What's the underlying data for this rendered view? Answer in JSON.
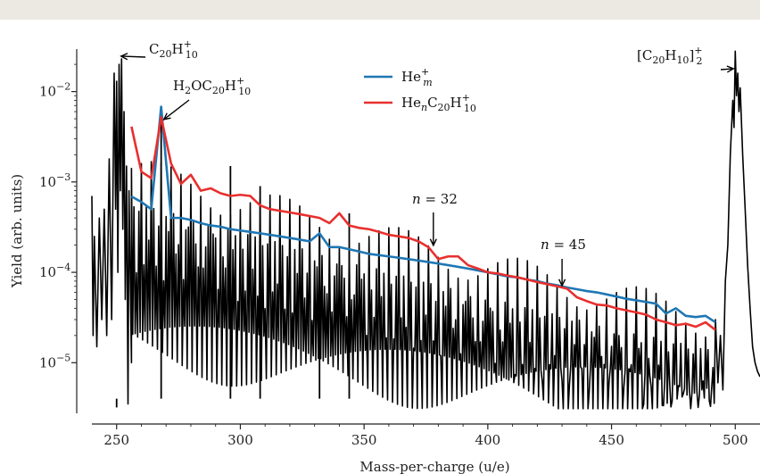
{
  "chart_data": {
    "type": "line",
    "xlabel": "Mass-per-charge (u/e)",
    "ylabel": "Yield (arb. units)",
    "xlim": [
      240,
      510
    ],
    "ylim_log10": [
      -5.55,
      -1.53
    ],
    "yscale": "log",
    "x_ticks": [
      250,
      300,
      350,
      400,
      450,
      500
    ],
    "x_tick_labels": [
      "250",
      "300",
      "350",
      "400",
      "450",
      "500"
    ],
    "y_ticks": [
      1e-05,
      0.0001,
      0.001,
      0.01
    ],
    "y_tick_labels": [
      "10",
      "10",
      "10",
      "10"
    ],
    "y_tick_exponents": [
      "−5",
      "−4",
      "−3",
      "−2"
    ],
    "colors": {
      "spectrum": "#000000",
      "He_m": "#1f77b4",
      "He_n_C20H10": "#e8302e"
    },
    "legend": {
      "placement": "top-center",
      "entries": [
        {
          "key": "He_m",
          "base": "He",
          "sup": "+",
          "sub": "m"
        },
        {
          "key": "He_n_C20H10",
          "base": "He",
          "sub": "n",
          "base2": "C",
          "sub2": "20",
          "base3": "H",
          "sup3": "+",
          "sub3": "10"
        }
      ]
    },
    "series": [
      {
        "key": "He_m",
        "x": [
          256,
          260,
          264,
          268,
          272,
          276,
          280,
          284,
          288,
          292,
          296,
          300,
          304,
          308,
          312,
          316,
          320,
          324,
          328,
          332,
          336,
          340,
          344,
          348,
          352,
          356,
          360,
          364,
          368,
          372,
          376,
          380,
          384,
          388,
          392,
          396,
          400,
          404,
          408,
          412,
          416,
          420,
          424,
          428,
          432,
          436,
          440,
          444,
          448,
          452,
          456,
          460,
          464,
          468,
          472,
          476,
          480,
          484,
          488,
          492
        ],
        "y": [
          0.00069,
          0.0006,
          0.0005,
          0.0068,
          0.0004,
          0.0004,
          0.00038,
          0.00035,
          0.00033,
          0.00032,
          0.0003,
          0.00029,
          0.00028,
          0.00027,
          0.00026,
          0.00025,
          0.00024,
          0.00023,
          0.00022,
          0.00027,
          0.00019,
          0.00019,
          0.00018,
          0.00017,
          0.00016,
          0.000155,
          0.00015,
          0.000145,
          0.00014,
          0.000135,
          0.00013,
          0.000125,
          0.00012,
          0.000115,
          0.00011,
          0.000105,
          0.0001,
          9.5e-05,
          9e-05,
          8.8e-05,
          8.3e-05,
          8e-05,
          7.5e-05,
          7.2e-05,
          6.8e-05,
          6.5e-05,
          6.2e-05,
          6e-05,
          5.7e-05,
          5.4e-05,
          5.1e-05,
          4.9e-05,
          4.7e-05,
          4.5e-05,
          3.5e-05,
          4e-05,
          3.3e-05,
          3.2e-05,
          3.3e-05,
          2.8e-05
        ]
      },
      {
        "key": "He_n_C20H10",
        "x": [
          256,
          260,
          264,
          268,
          272,
          276,
          280,
          284,
          288,
          292,
          296,
          300,
          304,
          308,
          312,
          316,
          320,
          324,
          328,
          332,
          336,
          340,
          344,
          348,
          352,
          356,
          360,
          364,
          368,
          372,
          376,
          380,
          384,
          388,
          392,
          396,
          400,
          404,
          408,
          412,
          416,
          420,
          424,
          428,
          432,
          436,
          440,
          444,
          448,
          452,
          456,
          460,
          464,
          468,
          472,
          476,
          480,
          484,
          488,
          492
        ],
        "y": [
          0.0041,
          0.0013,
          0.0011,
          0.0052,
          0.0016,
          0.00095,
          0.0012,
          0.0008,
          0.00085,
          0.00075,
          0.0007,
          0.00072,
          0.0007,
          0.00055,
          0.0005,
          0.00048,
          0.00046,
          0.00044,
          0.00042,
          0.0004,
          0.00035,
          0.00045,
          0.00033,
          0.00031,
          0.0003,
          0.00028,
          0.00026,
          0.00025,
          0.00024,
          0.00022,
          0.00019,
          0.00014,
          0.00015,
          0.00015,
          0.00012,
          0.00011,
          0.0001,
          9.7e-05,
          9.2e-05,
          8.8e-05,
          8.3e-05,
          7.8e-05,
          7.4e-05,
          7e-05,
          6.6e-05,
          5.3e-05,
          4.8e-05,
          4.4e-05,
          4.3e-05,
          4e-05,
          3.8e-05,
          3.6e-05,
          3.4e-05,
          3e-05,
          2.8e-05,
          2.6e-05,
          2.7e-05,
          2.5e-05,
          2.8e-05,
          2.3e-05
        ]
      }
    ],
    "annotations": [
      {
        "id": "c20h10",
        "kind": "ion",
        "base": "C",
        "sub": "20",
        "base2": "H",
        "sub2": "10",
        "sup": "+",
        "arrow_to": [
          250,
          0.023
        ]
      },
      {
        "id": "h2oc20h10",
        "kind": "ion",
        "pre": "H",
        "presub": "2",
        "mid": "OC",
        "midsub": "20",
        "base2": "H",
        "sub2": "10",
        "sup": "+",
        "arrow_to": [
          268,
          0.0055
        ]
      },
      {
        "id": "dimer",
        "kind": "ion",
        "text": "[C",
        "sub": "20",
        "mid": "H",
        "sub2": "10",
        "close": "]",
        "sup": "+",
        "subsup": "2",
        "arrow_to": [
          500,
          0.016
        ]
      },
      {
        "id": "n32",
        "kind": "n",
        "var": "n",
        "eq": " = 32",
        "arrow_to": [
          378,
          0.00019
        ]
      },
      {
        "id": "n45",
        "kind": "n",
        "var": "n",
        "eq": " = 45",
        "arrow_to": [
          430,
          6.8e-05
        ]
      }
    ]
  }
}
